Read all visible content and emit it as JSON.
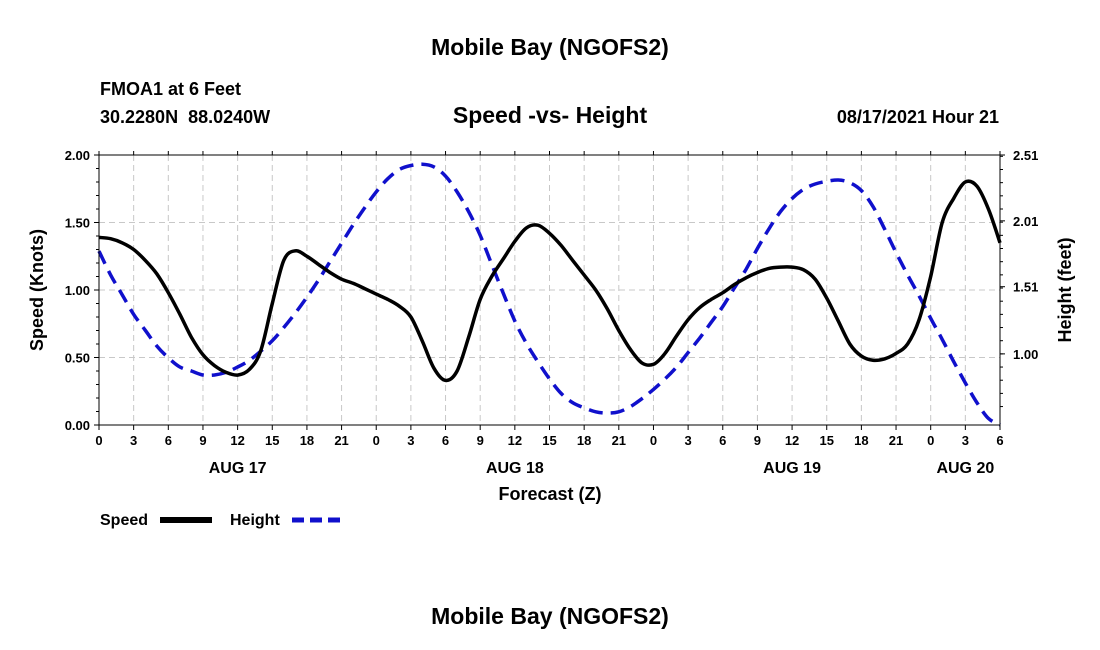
{
  "page": {
    "title_top": "Mobile Bay (NGOFS2)",
    "title_bottom": "Mobile Bay (NGOFS2)",
    "station_line": "FMOA1 at 6 Feet",
    "coords_line": "30.2280N  88.0240W",
    "chart_title": "Speed -vs- Height",
    "timestamp": "08/17/2021 Hour 21"
  },
  "chart_data": {
    "type": "line",
    "title": "Speed -vs- Height",
    "xlabel": "Forecast (Z)",
    "ylabel_left": "Speed (Knots)",
    "ylabel_right": "Height (feet)",
    "x_hours_range": [
      0,
      78
    ],
    "x_tick_labels": [
      "0",
      "3",
      "6",
      "9",
      "12",
      "15",
      "18",
      "21",
      "0",
      "3",
      "6",
      "9",
      "12",
      "15",
      "18",
      "21",
      "0",
      "3",
      "6",
      "9",
      "12",
      "15",
      "18",
      "21",
      "0",
      "3",
      "6"
    ],
    "day_labels": [
      {
        "label": "AUG 17",
        "hour": 12
      },
      {
        "label": "AUG 18",
        "hour": 36
      },
      {
        "label": "AUG 19",
        "hour": 60
      },
      {
        "label": "AUG 20",
        "hour": 75
      }
    ],
    "ylim_left": [
      0,
      2.0
    ],
    "yticks_left": [
      "0.00",
      "0.50",
      "1.00",
      "1.50",
      "2.00"
    ],
    "ylim_right": [
      0.46,
      2.51
    ],
    "yticks_right": [
      {
        "label": "1.00",
        "value": 1.0
      },
      {
        "label": "1.51",
        "value": 1.51
      },
      {
        "label": "2.01",
        "value": 2.01
      },
      {
        "label": "2.51",
        "value": 2.51
      }
    ],
    "grid": true,
    "legend_position": "bottom-left",
    "series": [
      {
        "name": "Speed",
        "axis": "left",
        "color": "#000000",
        "dash": "solid",
        "x": [
          0,
          1,
          2,
          3,
          4,
          5,
          6,
          7,
          8,
          9,
          10,
          11,
          12,
          13,
          14,
          15,
          16,
          17,
          18,
          19,
          20,
          21,
          22,
          23,
          24,
          25,
          26,
          27,
          28,
          29,
          30,
          31,
          32,
          33,
          34,
          35,
          36,
          37,
          38,
          39,
          40,
          41,
          42,
          43,
          44,
          45,
          46,
          47,
          48,
          49,
          50,
          51,
          52,
          53,
          54,
          55,
          56,
          57,
          58,
          59,
          60,
          61,
          62,
          63,
          64,
          65,
          66,
          67,
          68,
          69,
          70,
          71,
          72,
          73,
          74,
          75,
          76,
          77,
          78
        ],
        "y": [
          1.39,
          1.38,
          1.35,
          1.3,
          1.22,
          1.12,
          0.98,
          0.82,
          0.65,
          0.52,
          0.44,
          0.39,
          0.37,
          0.41,
          0.55,
          0.9,
          1.22,
          1.29,
          1.25,
          1.19,
          1.13,
          1.08,
          1.05,
          1.01,
          0.97,
          0.93,
          0.88,
          0.8,
          0.62,
          0.42,
          0.33,
          0.4,
          0.65,
          0.93,
          1.1,
          1.23,
          1.36,
          1.46,
          1.48,
          1.42,
          1.33,
          1.22,
          1.11,
          1.0,
          0.86,
          0.7,
          0.56,
          0.46,
          0.45,
          0.53,
          0.66,
          0.78,
          0.87,
          0.93,
          0.98,
          1.04,
          1.09,
          1.13,
          1.16,
          1.17,
          1.17,
          1.15,
          1.08,
          0.94,
          0.77,
          0.6,
          0.51,
          0.48,
          0.49,
          0.53,
          0.6,
          0.78,
          1.1,
          1.5,
          1.68,
          1.8,
          1.77,
          1.6,
          1.35
        ]
      },
      {
        "name": "Height",
        "axis": "right",
        "color": "#1010cc",
        "dash": "dashed",
        "x": [
          0,
          1,
          2,
          3,
          4,
          5,
          6,
          7,
          8,
          9,
          10,
          11,
          12,
          13,
          14,
          15,
          16,
          17,
          18,
          19,
          20,
          21,
          22,
          23,
          24,
          25,
          26,
          27,
          28,
          29,
          30,
          31,
          32,
          33,
          34,
          35,
          36,
          37,
          38,
          39,
          40,
          41,
          42,
          43,
          44,
          45,
          46,
          47,
          48,
          49,
          50,
          51,
          52,
          53,
          54,
          55,
          56,
          57,
          58,
          59,
          60,
          61,
          62,
          63,
          64,
          65,
          66,
          67,
          68,
          69,
          70,
          71,
          72,
          73,
          74,
          75,
          76,
          77,
          78
        ],
        "y": [
          1.78,
          1.6,
          1.45,
          1.3,
          1.18,
          1.06,
          0.97,
          0.9,
          0.87,
          0.84,
          0.84,
          0.86,
          0.9,
          0.95,
          1.02,
          1.1,
          1.2,
          1.31,
          1.43,
          1.56,
          1.7,
          1.84,
          1.98,
          2.11,
          2.23,
          2.33,
          2.4,
          2.43,
          2.44,
          2.42,
          2.35,
          2.23,
          2.08,
          1.9,
          1.68,
          1.46,
          1.25,
          1.08,
          0.94,
          0.81,
          0.7,
          0.63,
          0.59,
          0.56,
          0.55,
          0.56,
          0.6,
          0.66,
          0.73,
          0.81,
          0.9,
          1.01,
          1.12,
          1.24,
          1.36,
          1.5,
          1.64,
          1.8,
          1.95,
          2.08,
          2.18,
          2.25,
          2.29,
          2.31,
          2.32,
          2.3,
          2.24,
          2.12,
          1.95,
          1.77,
          1.6,
          1.44,
          1.27,
          1.11,
          0.94,
          0.78,
          0.63,
          0.51,
          0.46
        ]
      }
    ]
  }
}
